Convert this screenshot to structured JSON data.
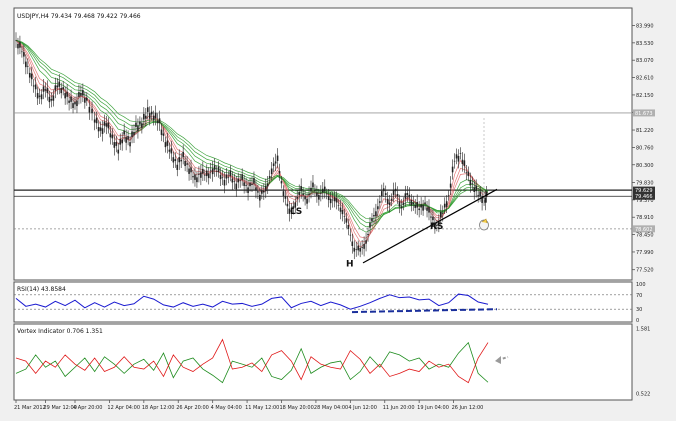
{
  "colors": {
    "background": "#f0f0f0",
    "panel": "#ffffff",
    "frame": "#555555",
    "candle": "#222222",
    "ema_red": "#e06a6a",
    "ema_green": "#2e9b2e",
    "rsi": "#1a1ad0",
    "trend_line": "#000000",
    "rsi_trend": "#1a2f9c",
    "vortex_plus": "#1e8c1e",
    "vortex_minus": "#e01818",
    "arrow": "#9a9a9a"
  },
  "chart_data": [
    {
      "type": "line",
      "title": "USDJPY,H4  79.434 79.468 79.422 79.466",
      "price_scale": [
        {
          "label": "83.990",
          "value": 83.99
        },
        {
          "label": "83.530",
          "value": 83.53
        },
        {
          "label": "83.070",
          "value": 83.07
        },
        {
          "label": "82.610",
          "value": 82.61
        },
        {
          "label": "82.150",
          "value": 82.15
        },
        {
          "label": "81.690",
          "value": 81.69
        },
        {
          "label": "81.220",
          "value": 81.22
        },
        {
          "label": "80.760",
          "value": 80.76
        },
        {
          "label": "80.300",
          "value": 80.3
        },
        {
          "label": "79.830",
          "value": 79.83
        },
        {
          "label": "79.370",
          "value": 79.37
        },
        {
          "label": "78.910",
          "value": 78.91
        },
        {
          "label": "78.450",
          "value": 78.45
        },
        {
          "label": "77.990",
          "value": 77.99
        },
        {
          "label": "77.520",
          "value": 77.52
        }
      ],
      "price_tags": [
        {
          "label": "81.673",
          "value": 81.673
        },
        {
          "label": "79.629",
          "value": 79.629
        },
        {
          "label": "79.466",
          "value": 79.466
        },
        {
          "label": "78.602",
          "value": 78.602
        }
      ],
      "horizontal_levels": [
        81.673,
        79.629,
        79.466,
        78.602
      ],
      "ylim": [
        77.3,
        84.4
      ],
      "pattern_labels": [
        {
          "text": "LS",
          "x": 290,
          "y": 79.0
        },
        {
          "text": "H",
          "x": 346,
          "y": 77.6
        },
        {
          "text": "RS",
          "x": 430,
          "y": 78.6
        }
      ],
      "neckline": {
        "x": [
          363,
          497
        ],
        "y": [
          77.7,
          79.65
        ]
      },
      "close_series": [
        {
          "x": 0,
          "y": 83.6
        },
        {
          "x": 6,
          "y": 83.3
        },
        {
          "x": 12,
          "y": 82.9
        },
        {
          "x": 18,
          "y": 82.4
        },
        {
          "x": 24,
          "y": 82.1
        },
        {
          "x": 30,
          "y": 82.3
        },
        {
          "x": 36,
          "y": 82.0
        },
        {
          "x": 42,
          "y": 82.4
        },
        {
          "x": 48,
          "y": 82.3
        },
        {
          "x": 54,
          "y": 82.0
        },
        {
          "x": 60,
          "y": 81.9
        },
        {
          "x": 66,
          "y": 82.2
        },
        {
          "x": 72,
          "y": 82.0
        },
        {
          "x": 80,
          "y": 81.5
        },
        {
          "x": 86,
          "y": 81.2
        },
        {
          "x": 92,
          "y": 81.4
        },
        {
          "x": 98,
          "y": 81.0
        },
        {
          "x": 104,
          "y": 80.7
        },
        {
          "x": 110,
          "y": 81.1
        },
        {
          "x": 116,
          "y": 80.9
        },
        {
          "x": 122,
          "y": 81.3
        },
        {
          "x": 128,
          "y": 81.4
        },
        {
          "x": 134,
          "y": 81.7
        },
        {
          "x": 140,
          "y": 81.6
        },
        {
          "x": 146,
          "y": 81.4
        },
        {
          "x": 152,
          "y": 80.9
        },
        {
          "x": 158,
          "y": 80.6
        },
        {
          "x": 164,
          "y": 80.3
        },
        {
          "x": 170,
          "y": 80.5
        },
        {
          "x": 176,
          "y": 80.2
        },
        {
          "x": 182,
          "y": 79.9
        },
        {
          "x": 188,
          "y": 80.1
        },
        {
          "x": 194,
          "y": 80.0
        },
        {
          "x": 200,
          "y": 80.2
        },
        {
          "x": 206,
          "y": 80.1
        },
        {
          "x": 212,
          "y": 79.9
        },
        {
          "x": 218,
          "y": 80.0
        },
        {
          "x": 224,
          "y": 79.8
        },
        {
          "x": 230,
          "y": 79.9
        },
        {
          "x": 236,
          "y": 79.7
        },
        {
          "x": 242,
          "y": 79.8
        },
        {
          "x": 248,
          "y": 79.5
        },
        {
          "x": 254,
          "y": 79.6
        },
        {
          "x": 260,
          "y": 80.2
        },
        {
          "x": 266,
          "y": 80.4
        },
        {
          "x": 272,
          "y": 79.6
        },
        {
          "x": 278,
          "y": 79.0
        },
        {
          "x": 284,
          "y": 79.3
        },
        {
          "x": 290,
          "y": 79.6
        },
        {
          "x": 296,
          "y": 79.4
        },
        {
          "x": 302,
          "y": 79.7
        },
        {
          "x": 308,
          "y": 79.5
        },
        {
          "x": 314,
          "y": 79.6
        },
        {
          "x": 320,
          "y": 79.4
        },
        {
          "x": 326,
          "y": 79.3
        },
        {
          "x": 332,
          "y": 79.1
        },
        {
          "x": 338,
          "y": 78.6
        },
        {
          "x": 344,
          "y": 78.1
        },
        {
          "x": 350,
          "y": 78.0
        },
        {
          "x": 356,
          "y": 78.3
        },
        {
          "x": 362,
          "y": 78.8
        },
        {
          "x": 368,
          "y": 79.2
        },
        {
          "x": 374,
          "y": 79.6
        },
        {
          "x": 380,
          "y": 79.3
        },
        {
          "x": 386,
          "y": 79.6
        },
        {
          "x": 392,
          "y": 79.2
        },
        {
          "x": 398,
          "y": 79.5
        },
        {
          "x": 404,
          "y": 79.3
        },
        {
          "x": 410,
          "y": 79.1
        },
        {
          "x": 416,
          "y": 79.3
        },
        {
          "x": 422,
          "y": 78.9
        },
        {
          "x": 428,
          "y": 78.7
        },
        {
          "x": 434,
          "y": 79.0
        },
        {
          "x": 440,
          "y": 79.5
        },
        {
          "x": 446,
          "y": 80.4
        },
        {
          "x": 452,
          "y": 80.6
        },
        {
          "x": 458,
          "y": 80.1
        },
        {
          "x": 464,
          "y": 79.8
        },
        {
          "x": 470,
          "y": 79.5
        },
        {
          "x": 476,
          "y": 79.4
        },
        {
          "x": 480,
          "y": 79.466
        }
      ]
    },
    {
      "type": "line",
      "title": "RSI(14) 43.8584",
      "scale_labels": [
        {
          "label": "100",
          "value": 100
        },
        {
          "label": "70",
          "value": 70
        },
        {
          "label": "30",
          "value": 30
        },
        {
          "label": "0",
          "value": 0
        }
      ],
      "levels": [
        70,
        30
      ],
      "ylim": [
        0,
        100
      ],
      "trend_line": {
        "x": [
          352,
          497
        ],
        "y": [
          22,
          30
        ]
      },
      "series": [
        {
          "x": 0,
          "y": 60
        },
        {
          "x": 10,
          "y": 38
        },
        {
          "x": 20,
          "y": 44
        },
        {
          "x": 30,
          "y": 36
        },
        {
          "x": 40,
          "y": 52
        },
        {
          "x": 50,
          "y": 40
        },
        {
          "x": 60,
          "y": 55
        },
        {
          "x": 70,
          "y": 34
        },
        {
          "x": 80,
          "y": 48
        },
        {
          "x": 90,
          "y": 36
        },
        {
          "x": 100,
          "y": 50
        },
        {
          "x": 110,
          "y": 40
        },
        {
          "x": 120,
          "y": 45
        },
        {
          "x": 130,
          "y": 66
        },
        {
          "x": 140,
          "y": 58
        },
        {
          "x": 150,
          "y": 42
        },
        {
          "x": 160,
          "y": 36
        },
        {
          "x": 170,
          "y": 48
        },
        {
          "x": 180,
          "y": 38
        },
        {
          "x": 190,
          "y": 44
        },
        {
          "x": 200,
          "y": 36
        },
        {
          "x": 210,
          "y": 52
        },
        {
          "x": 220,
          "y": 44
        },
        {
          "x": 230,
          "y": 46
        },
        {
          "x": 240,
          "y": 38
        },
        {
          "x": 250,
          "y": 44
        },
        {
          "x": 260,
          "y": 60
        },
        {
          "x": 270,
          "y": 64
        },
        {
          "x": 280,
          "y": 34
        },
        {
          "x": 290,
          "y": 46
        },
        {
          "x": 300,
          "y": 52
        },
        {
          "x": 310,
          "y": 40
        },
        {
          "x": 320,
          "y": 50
        },
        {
          "x": 330,
          "y": 42
        },
        {
          "x": 340,
          "y": 30
        },
        {
          "x": 350,
          "y": 38
        },
        {
          "x": 360,
          "y": 48
        },
        {
          "x": 370,
          "y": 60
        },
        {
          "x": 380,
          "y": 70
        },
        {
          "x": 390,
          "y": 62
        },
        {
          "x": 400,
          "y": 64
        },
        {
          "x": 410,
          "y": 56
        },
        {
          "x": 420,
          "y": 58
        },
        {
          "x": 430,
          "y": 40
        },
        {
          "x": 440,
          "y": 48
        },
        {
          "x": 450,
          "y": 72
        },
        {
          "x": 460,
          "y": 68
        },
        {
          "x": 470,
          "y": 50
        },
        {
          "x": 480,
          "y": 43.86
        }
      ]
    },
    {
      "type": "line",
      "title": "Vortex Indicator 0.706 1.351",
      "scale_labels": [
        {
          "label": "1.581",
          "value": 1.581
        },
        {
          "label": "0.522",
          "value": 0.522
        }
      ],
      "ylim": [
        0.45,
        1.62
      ],
      "series": [
        {
          "name": "VI+",
          "color": "#1e8c1e",
          "values": [
            {
              "x": 0,
              "y": 0.85
            },
            {
              "x": 10,
              "y": 0.92
            },
            {
              "x": 20,
              "y": 1.15
            },
            {
              "x": 30,
              "y": 0.95
            },
            {
              "x": 40,
              "y": 1.05
            },
            {
              "x": 50,
              "y": 0.8
            },
            {
              "x": 60,
              "y": 0.95
            },
            {
              "x": 70,
              "y": 1.1
            },
            {
              "x": 80,
              "y": 0.88
            },
            {
              "x": 90,
              "y": 1.12
            },
            {
              "x": 100,
              "y": 1.0
            },
            {
              "x": 110,
              "y": 0.85
            },
            {
              "x": 120,
              "y": 1.0
            },
            {
              "x": 130,
              "y": 1.08
            },
            {
              "x": 140,
              "y": 0.9
            },
            {
              "x": 150,
              "y": 1.18
            },
            {
              "x": 160,
              "y": 0.78
            },
            {
              "x": 170,
              "y": 1.05
            },
            {
              "x": 180,
              "y": 1.1
            },
            {
              "x": 190,
              "y": 0.92
            },
            {
              "x": 200,
              "y": 0.82
            },
            {
              "x": 210,
              "y": 0.7
            },
            {
              "x": 220,
              "y": 1.05
            },
            {
              "x": 230,
              "y": 1.0
            },
            {
              "x": 240,
              "y": 0.95
            },
            {
              "x": 250,
              "y": 1.1
            },
            {
              "x": 260,
              "y": 0.8
            },
            {
              "x": 270,
              "y": 0.75
            },
            {
              "x": 280,
              "y": 0.9
            },
            {
              "x": 290,
              "y": 1.25
            },
            {
              "x": 300,
              "y": 0.85
            },
            {
              "x": 310,
              "y": 0.95
            },
            {
              "x": 320,
              "y": 1.02
            },
            {
              "x": 330,
              "y": 1.05
            },
            {
              "x": 340,
              "y": 0.75
            },
            {
              "x": 350,
              "y": 0.88
            },
            {
              "x": 360,
              "y": 1.12
            },
            {
              "x": 370,
              "y": 0.95
            },
            {
              "x": 380,
              "y": 1.2
            },
            {
              "x": 390,
              "y": 1.15
            },
            {
              "x": 400,
              "y": 1.05
            },
            {
              "x": 410,
              "y": 1.1
            },
            {
              "x": 420,
              "y": 0.92
            },
            {
              "x": 430,
              "y": 1.0
            },
            {
              "x": 440,
              "y": 0.95
            },
            {
              "x": 450,
              "y": 1.18
            },
            {
              "x": 460,
              "y": 1.35
            },
            {
              "x": 470,
              "y": 0.85
            },
            {
              "x": 480,
              "y": 0.706
            }
          ]
        },
        {
          "name": "VI-",
          "color": "#e01818",
          "values": [
            {
              "x": 0,
              "y": 1.1
            },
            {
              "x": 10,
              "y": 1.05
            },
            {
              "x": 20,
              "y": 0.85
            },
            {
              "x": 30,
              "y": 1.05
            },
            {
              "x": 40,
              "y": 0.95
            },
            {
              "x": 50,
              "y": 1.15
            },
            {
              "x": 60,
              "y": 1.0
            },
            {
              "x": 70,
              "y": 0.9
            },
            {
              "x": 80,
              "y": 1.1
            },
            {
              "x": 90,
              "y": 0.88
            },
            {
              "x": 100,
              "y": 0.95
            },
            {
              "x": 110,
              "y": 1.12
            },
            {
              "x": 120,
              "y": 0.95
            },
            {
              "x": 130,
              "y": 0.92
            },
            {
              "x": 140,
              "y": 1.05
            },
            {
              "x": 150,
              "y": 0.8
            },
            {
              "x": 160,
              "y": 1.15
            },
            {
              "x": 170,
              "y": 0.95
            },
            {
              "x": 180,
              "y": 0.88
            },
            {
              "x": 190,
              "y": 1.0
            },
            {
              "x": 200,
              "y": 1.1
            },
            {
              "x": 210,
              "y": 1.4
            },
            {
              "x": 220,
              "y": 0.92
            },
            {
              "x": 230,
              "y": 0.95
            },
            {
              "x": 240,
              "y": 1.02
            },
            {
              "x": 250,
              "y": 0.88
            },
            {
              "x": 260,
              "y": 1.15
            },
            {
              "x": 270,
              "y": 1.22
            },
            {
              "x": 280,
              "y": 1.05
            },
            {
              "x": 290,
              "y": 0.75
            },
            {
              "x": 300,
              "y": 1.12
            },
            {
              "x": 310,
              "y": 1.0
            },
            {
              "x": 320,
              "y": 0.95
            },
            {
              "x": 330,
              "y": 0.92
            },
            {
              "x": 340,
              "y": 1.22
            },
            {
              "x": 350,
              "y": 1.08
            },
            {
              "x": 360,
              "y": 0.85
            },
            {
              "x": 370,
              "y": 1.0
            },
            {
              "x": 380,
              "y": 0.8
            },
            {
              "x": 390,
              "y": 0.85
            },
            {
              "x": 400,
              "y": 0.92
            },
            {
              "x": 410,
              "y": 0.88
            },
            {
              "x": 420,
              "y": 1.05
            },
            {
              "x": 430,
              "y": 0.95
            },
            {
              "x": 440,
              "y": 1.0
            },
            {
              "x": 450,
              "y": 0.8
            },
            {
              "x": 460,
              "y": 0.7
            },
            {
              "x": 470,
              "y": 1.1
            },
            {
              "x": 480,
              "y": 1.351
            }
          ]
        }
      ]
    }
  ],
  "time_axis": [
    {
      "label": "21 Mar 2012",
      "x": 0
    },
    {
      "label": "29 Mar 12:00",
      "x": 30
    },
    {
      "label": "4 Apr 20:00",
      "x": 60
    },
    {
      "label": "12 Apr 04:00",
      "x": 95
    },
    {
      "label": "18 Apr 12:00",
      "x": 130
    },
    {
      "label": "26 Apr 20:00",
      "x": 165
    },
    {
      "label": "4 May 04:00",
      "x": 200
    },
    {
      "label": "11 May 12:00",
      "x": 235
    },
    {
      "label": "18 May 20:00",
      "x": 270
    },
    {
      "label": "28 May 04:00",
      "x": 305
    },
    {
      "label": "4 Jun 12:00",
      "x": 340
    },
    {
      "label": "11 Jun 20:00",
      "x": 375
    },
    {
      "label": "19 Jun 04:00",
      "x": 410
    },
    {
      "label": "26 Jun 12:00",
      "x": 445
    }
  ]
}
